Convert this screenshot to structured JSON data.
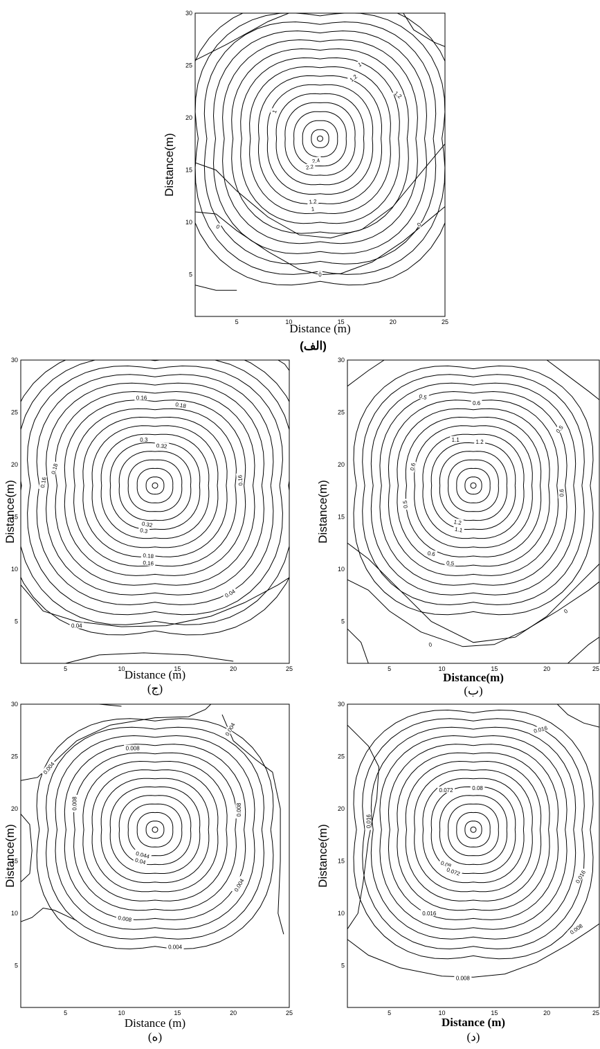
{
  "chart_data": [
    {
      "type": "contour",
      "panel_caption": "(الف)",
      "xlabel": "Distance (m)",
      "ylabel": "Distance(m)",
      "xlim": [
        1,
        25
      ],
      "ylim": [
        1,
        30
      ],
      "x_ticks": [
        "5",
        "10",
        "15",
        "20",
        "25"
      ],
      "y_ticks": [
        "5",
        "10",
        "15",
        "20",
        "25",
        "30"
      ],
      "peak": {
        "x": 13,
        "y": 18
      },
      "contour_labels": [
        "1",
        "1.2",
        "1.2",
        "1",
        "2.4",
        "2.2",
        "1.2",
        "1",
        "0",
        "0",
        "0"
      ]
    },
    {
      "type": "contour",
      "panel_caption": "(ج)",
      "xlabel": "Distance (m)",
      "ylabel": "Distance(m)",
      "xlim": [
        1,
        25
      ],
      "ylim": [
        1,
        30
      ],
      "x_ticks": [
        "5",
        "10",
        "15",
        "20",
        "25"
      ],
      "y_ticks": [
        "5",
        "10",
        "15",
        "20",
        "25",
        "30"
      ],
      "peak": {
        "x": 13,
        "y": 18
      },
      "contour_labels": [
        "0.16",
        "0.18",
        "0.3",
        "0.32",
        "0.16",
        "0.18",
        "0.16",
        "0.32",
        "0.3",
        "0.18",
        "0.16",
        "0.04",
        "0.04"
      ]
    },
    {
      "type": "contour",
      "panel_caption": "(ب)",
      "xlabel": "Distance(m)",
      "ylabel": "Distance(m)",
      "xlim": [
        1,
        25
      ],
      "ylim": [
        1,
        30
      ],
      "x_ticks": [
        "5",
        "10",
        "15",
        "20",
        "25"
      ],
      "y_ticks": [
        "5",
        "10",
        "15",
        "20",
        "25",
        "30"
      ],
      "peak": {
        "x": 13,
        "y": 18
      },
      "contour_labels": [
        "0.5",
        "0.6",
        "1.1",
        "1.2",
        "0.5",
        "0.6",
        "0.5",
        "0.6",
        "1.2",
        "1.1",
        "0.6",
        "0.5",
        "0",
        "0"
      ]
    },
    {
      "type": "contour",
      "panel_caption": "(ه)",
      "xlabel": "Distance (m)",
      "ylabel": "Distance(m)",
      "xlim": [
        1,
        25
      ],
      "ylim": [
        1,
        30
      ],
      "x_ticks": [
        "5",
        "10",
        "15",
        "20",
        "25"
      ],
      "y_ticks": [
        "5",
        "10",
        "15",
        "20",
        "25",
        "30"
      ],
      "peak": {
        "x": 13,
        "y": 18
      },
      "contour_labels": [
        "0.008",
        "0.004",
        "0.004",
        "0.008",
        "0.008",
        "0.044",
        "0.04",
        "0.008",
        "0.004",
        "0.004"
      ]
    },
    {
      "type": "contour",
      "panel_caption": "(د)",
      "xlabel": "Distance (m)",
      "ylabel": "Distance(m)",
      "xlim": [
        1,
        25
      ],
      "ylim": [
        1,
        30
      ],
      "x_ticks": [
        "5",
        "10",
        "15",
        "20",
        "25"
      ],
      "y_ticks": [
        "5",
        "10",
        "15",
        "20",
        "25",
        "30"
      ],
      "peak": {
        "x": 13,
        "y": 18
      },
      "contour_labels": [
        "0.016",
        "0.072",
        "0.08",
        "0.016",
        "0.08",
        "0.072",
        "0.016",
        "0.016",
        "0.008",
        "0.008"
      ]
    }
  ]
}
